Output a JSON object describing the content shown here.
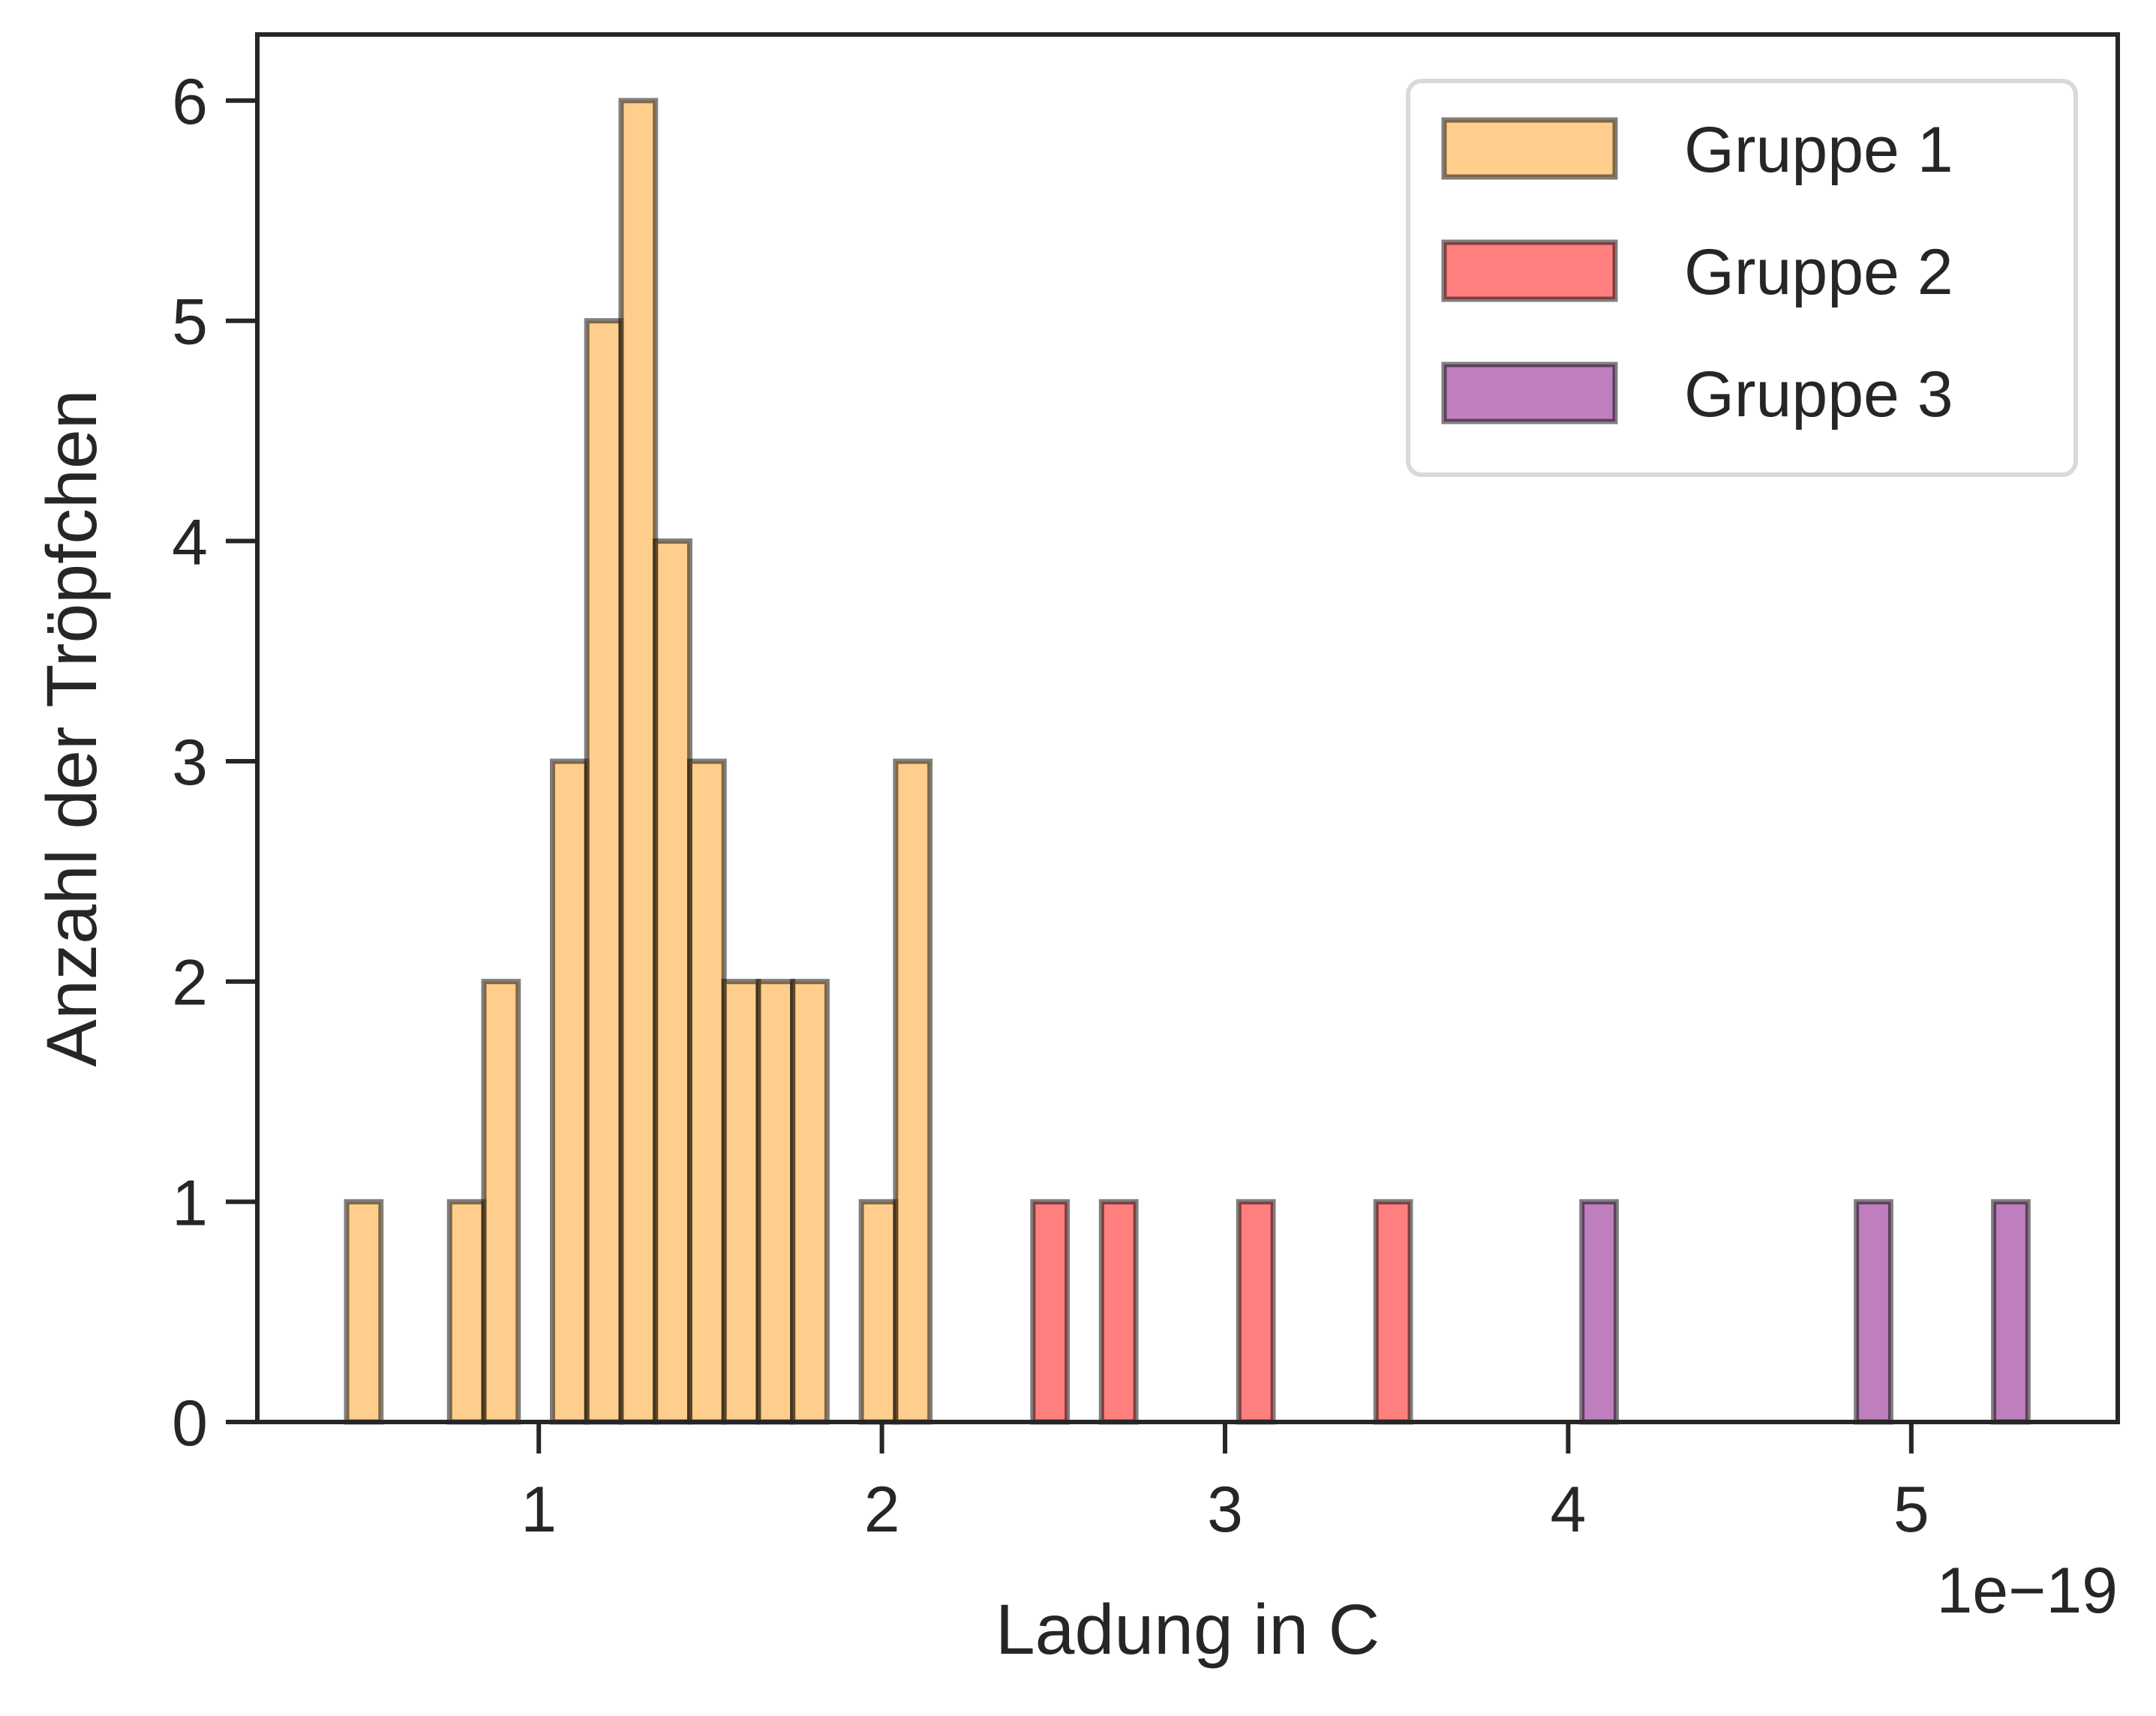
{
  "chart_data": {
    "type": "bar",
    "xlabel": "Ladung in C",
    "ylabel": "Anzahl der Tröpfchen",
    "offset_label": "1e−19",
    "x_scale_exponent": -19,
    "xlim": [
      0.1797,
      5.6016
    ],
    "ylim": [
      0,
      6.3
    ],
    "x_ticks": [
      1,
      2,
      3,
      4,
      5
    ],
    "y_ticks": [
      0,
      1,
      2,
      3,
      4,
      5,
      6
    ],
    "bin_width": 0.1,
    "grid": false,
    "legend_position": "top-right",
    "series": [
      {
        "name": "Gruppe 1",
        "color": "#ff9e1b",
        "bins": [
          {
            "x0": 0.44,
            "x1": 0.54,
            "count": 1
          },
          {
            "x0": 0.74,
            "x1": 0.84,
            "count": 1
          },
          {
            "x0": 0.84,
            "x1": 0.94,
            "count": 2
          },
          {
            "x0": 1.04,
            "x1": 1.14,
            "count": 3
          },
          {
            "x0": 1.14,
            "x1": 1.24,
            "count": 5
          },
          {
            "x0": 1.24,
            "x1": 1.34,
            "count": 6
          },
          {
            "x0": 1.34,
            "x1": 1.44,
            "count": 4
          },
          {
            "x0": 1.44,
            "x1": 1.54,
            "count": 3
          },
          {
            "x0": 1.54,
            "x1": 1.64,
            "count": 2
          },
          {
            "x0": 1.64,
            "x1": 1.74,
            "count": 2
          },
          {
            "x0": 1.74,
            "x1": 1.84,
            "count": 2
          },
          {
            "x0": 1.94,
            "x1": 2.04,
            "count": 1
          },
          {
            "x0": 2.04,
            "x1": 2.14,
            "count": 3
          }
        ]
      },
      {
        "name": "Gruppe 2",
        "color": "#ff0000",
        "bins": [
          {
            "x0": 2.44,
            "x1": 2.54,
            "count": 1
          },
          {
            "x0": 2.64,
            "x1": 2.74,
            "count": 1
          },
          {
            "x0": 3.04,
            "x1": 3.14,
            "count": 1
          },
          {
            "x0": 3.44,
            "x1": 3.54,
            "count": 1
          }
        ]
      },
      {
        "name": "Gruppe 3",
        "color": "#800080",
        "bins": [
          {
            "x0": 4.04,
            "x1": 4.14,
            "count": 1
          },
          {
            "x0": 4.84,
            "x1": 4.94,
            "count": 1
          },
          {
            "x0": 5.24,
            "x1": 5.34,
            "count": 1
          }
        ]
      }
    ]
  }
}
